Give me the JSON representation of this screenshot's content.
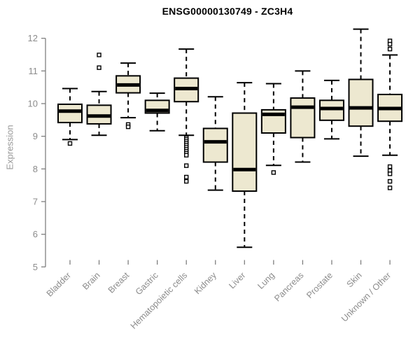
{
  "title": "ENSG00000130749 - ZC3H4",
  "chart_data": {
    "type": "boxplot",
    "title": "ENSG00000130749 - ZC3H4",
    "xlabel": "",
    "ylabel": "Expression",
    "ylim": [
      5,
      12
    ],
    "yticks": [
      5,
      6,
      7,
      8,
      9,
      10,
      11,
      12
    ],
    "grid": false,
    "legend": "none",
    "categories": [
      "Bladder",
      "Brain",
      "Breast",
      "Gastric",
      "Hematopoietic cells",
      "Kidney",
      "Liver",
      "Lung",
      "Pancreas",
      "Prostate",
      "Skin",
      "Unknown / Other"
    ],
    "boxes": [
      {
        "category": "Bladder",
        "low": 8.9,
        "q1": 9.42,
        "median": 9.77,
        "q3": 9.98,
        "high": 10.46,
        "outliers_low": [
          8.78
        ],
        "outliers_high": []
      },
      {
        "category": "Brain",
        "low": 9.03,
        "q1": 9.38,
        "median": 9.62,
        "q3": 9.95,
        "high": 10.37,
        "outliers_low": [],
        "outliers_high": [
          11.1,
          11.49
        ]
      },
      {
        "category": "Breast",
        "low": 9.57,
        "q1": 10.33,
        "median": 10.57,
        "q3": 10.85,
        "high": 11.24,
        "outliers_low": [
          9.36,
          9.29
        ],
        "outliers_high": []
      },
      {
        "category": "Gastric",
        "low": 9.17,
        "q1": 9.71,
        "median": 9.79,
        "q3": 10.1,
        "high": 10.32,
        "outliers_low": [],
        "outliers_high": []
      },
      {
        "category": "Hematopoietic cells",
        "low": 9.03,
        "q1": 10.06,
        "median": 10.46,
        "q3": 10.78,
        "high": 11.67,
        "outliers_low": [
          8.95,
          8.9,
          8.84,
          8.78,
          8.72,
          8.66,
          8.6,
          8.54,
          8.48,
          8.42,
          8.1,
          7.75,
          7.62
        ],
        "outliers_high": []
      },
      {
        "category": "Kidney",
        "low": 7.35,
        "q1": 8.21,
        "median": 8.83,
        "q3": 9.24,
        "high": 10.21,
        "outliers_low": [],
        "outliers_high": []
      },
      {
        "category": "Liver",
        "low": 5.6,
        "q1": 7.32,
        "median": 7.98,
        "q3": 9.71,
        "high": 10.64,
        "outliers_low": [],
        "outliers_high": []
      },
      {
        "category": "Lung",
        "low": 8.11,
        "q1": 9.1,
        "median": 9.67,
        "q3": 9.81,
        "high": 10.61,
        "outliers_low": [
          7.89
        ],
        "outliers_high": []
      },
      {
        "category": "Pancreas",
        "low": 8.21,
        "q1": 8.96,
        "median": 9.89,
        "q3": 10.17,
        "high": 11.0,
        "outliers_low": [],
        "outliers_high": []
      },
      {
        "category": "Prostate",
        "low": 8.92,
        "q1": 9.49,
        "median": 9.85,
        "q3": 10.1,
        "high": 10.71,
        "outliers_low": [],
        "outliers_high": []
      },
      {
        "category": "Skin",
        "low": 8.39,
        "q1": 9.31,
        "median": 9.87,
        "q3": 10.74,
        "high": 12.28,
        "outliers_low": [],
        "outliers_high": []
      },
      {
        "category": "Unknown / Other",
        "low": 8.42,
        "q1": 9.46,
        "median": 9.85,
        "q3": 10.28,
        "high": 11.49,
        "outliers_low": [
          8.07,
          7.95,
          7.85,
          7.62,
          7.42
        ],
        "outliers_high": [
          11.92,
          11.82,
          11.67
        ]
      }
    ],
    "colors": {
      "background": "#FFFFFF",
      "box_fill": "#EDE8D0",
      "box_border": "#000000",
      "median": "#000000",
      "whisker": "#000000",
      "outlier_border": "#000000",
      "outlier_fill": "#FFFFFF",
      "axis": "#7F7F7F",
      "tick_label": "#8C8C8C",
      "title": "#000000"
    }
  }
}
